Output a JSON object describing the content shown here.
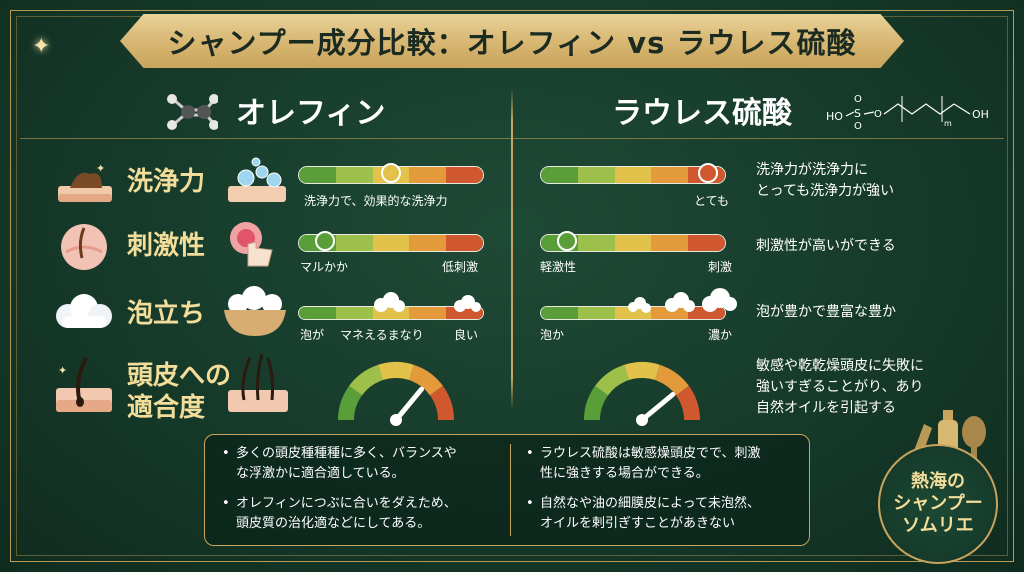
{
  "title": "シャンプー成分比較：オレフィン vs ラウレス硫酸",
  "left": {
    "heading": "オレフィン",
    "rows": [
      {
        "caption": [
          "洗浄力で、効果的な洗浄力"
        ],
        "level": 0.5
      },
      {
        "caption": [
          "マルかか",
          "低刺激"
        ],
        "level": 0.1
      },
      {
        "caption": [
          "泡が",
          "マネえるまなり",
          "良い"
        ],
        "level": 0.95
      },
      {
        "gauge_level": 0.72
      }
    ]
  },
  "right": {
    "heading": "ラウレス硫酸",
    "formula": {
      "left": "HO",
      "s": "S",
      "o1": "O",
      "o2": "O",
      "o3": "O",
      "n": "m",
      "right": "OH"
    },
    "rows": [
      {
        "caption": [
          "とても"
        ],
        "desc": [
          "洗浄力が洗浄力に",
          "とっても洗浄力が強い"
        ],
        "level": 0.95
      },
      {
        "caption": [
          "軽激性",
          "刺激"
        ],
        "desc": [
          "刺激性が高いができる"
        ],
        "level": 0.1
      },
      {
        "caption": [
          "泡か",
          "濃か"
        ],
        "desc": [
          "泡が豊かで豊富な豊か"
        ],
        "level": 0.95
      },
      {
        "desc": [
          "敏感や乾乾燥頭皮に失敗に",
          "強いすぎることがり、あり",
          "自然オイルを引起する"
        ],
        "gauge_level": 0.78
      }
    ]
  },
  "labels": {
    "cleansing": "洗浄力",
    "irritation": "刺激性",
    "foam": "泡立ち",
    "scalp_1": "頭皮への",
    "scalp_2": "適合度"
  },
  "bottom": {
    "left": [
      [
        "多くの頭皮種種種に多く、バランスや",
        "な浮激かに適合適している。"
      ],
      [
        "オレフィンにつぶに合いをダえため、",
        "頭皮質の治化適などにしてある。"
      ]
    ],
    "right": [
      [
        "ラウレス硫酸は敏感燥頭皮でで、刺激",
        "性に強きする場合ができる。"
      ],
      [
        "自然なや油の細膜皮によって未泡然、",
        "オイルを剌引ぎすことがあきない"
      ]
    ]
  },
  "badge": [
    "熱海の",
    "シャンプー",
    "ソムリエ"
  ],
  "colors": {
    "bg": "#163a2a",
    "gold": "#c9a45c",
    "label": "#f2dd9a",
    "seg": [
      "#5a9e3a",
      "#9cc04a",
      "#e2c24a",
      "#e39a3a",
      "#d0582e"
    ]
  }
}
